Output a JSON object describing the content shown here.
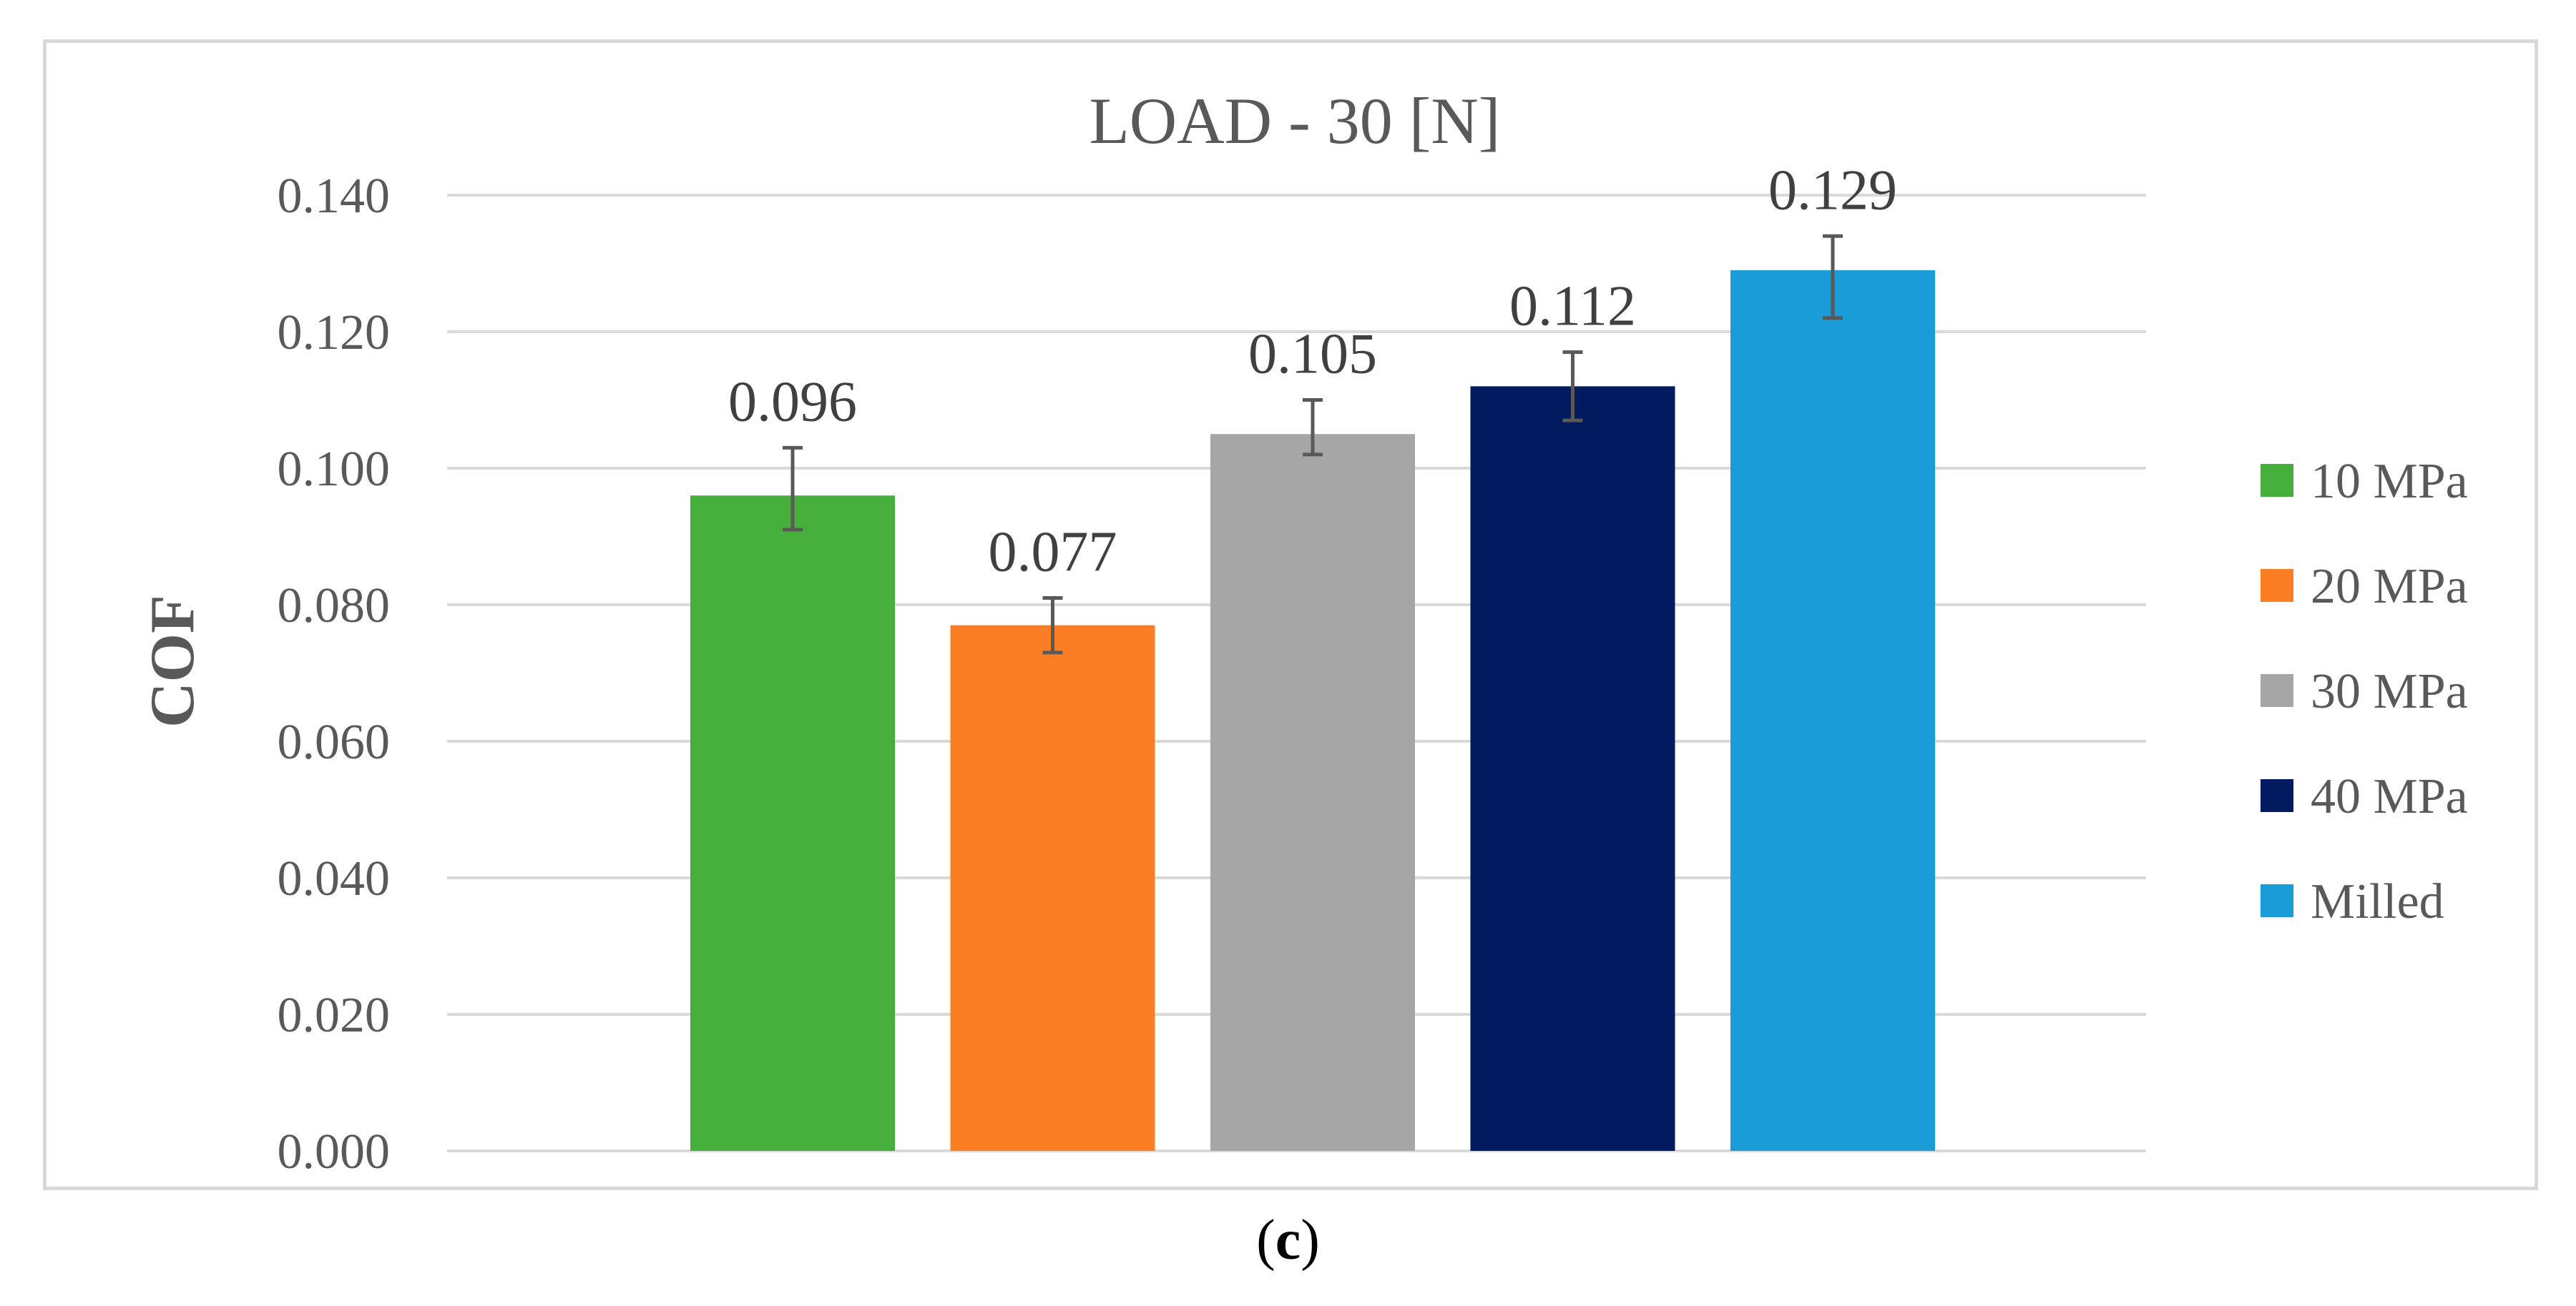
{
  "chart_data": {
    "type": "bar",
    "title": "LOAD - 30 [N]",
    "xlabel": "",
    "ylabel": "COF",
    "ylim": [
      0,
      0.14
    ],
    "yticks": [
      0.0,
      0.02,
      0.04,
      0.06,
      0.08,
      0.1,
      0.12,
      0.14
    ],
    "ytick_labels": [
      "0.000",
      "0.020",
      "0.040",
      "0.060",
      "0.080",
      "0.100",
      "0.120",
      "0.140"
    ],
    "grid": true,
    "legend_position": "right",
    "categories": [
      "10 MPa",
      "20 MPa",
      "30 MPa",
      "40 MPa",
      "Milled"
    ],
    "values": [
      0.096,
      0.077,
      0.105,
      0.112,
      0.129
    ],
    "value_labels": [
      "0.096",
      "0.077",
      "0.105",
      "0.112",
      "0.129"
    ],
    "error_low": [
      0.091,
      0.073,
      0.102,
      0.107,
      0.122
    ],
    "error_high": [
      0.103,
      0.081,
      0.11,
      0.117,
      0.134
    ],
    "colors": [
      "#46ae3a",
      "#fb7d24",
      "#a6a6a6",
      "#021a5e",
      "#1a9cd8"
    ]
  },
  "caption": {
    "open": "(",
    "letter": "c",
    "close": ")"
  }
}
